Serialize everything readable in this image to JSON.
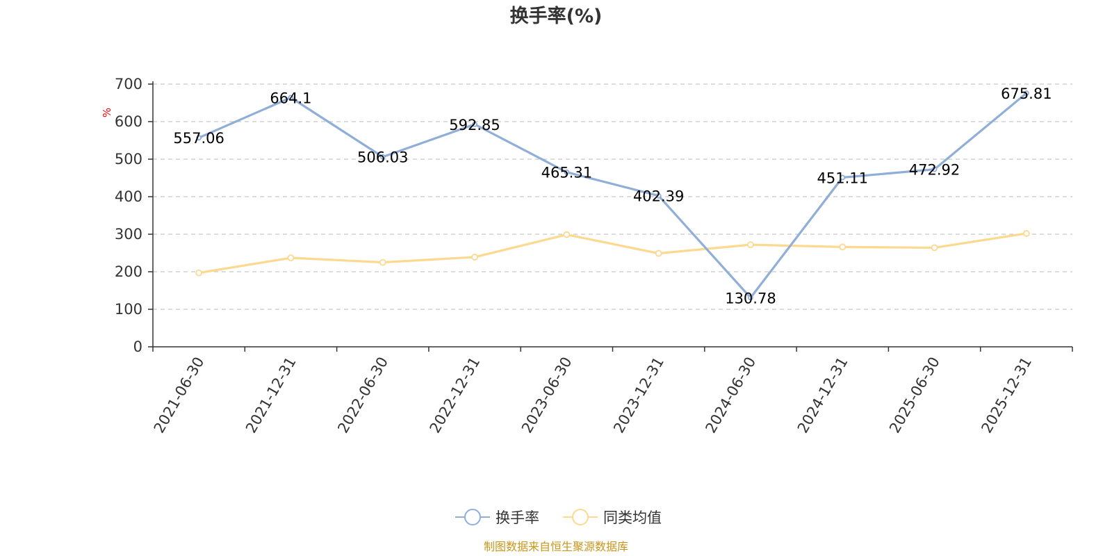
{
  "colors": {
    "series_turnover": "#8faed8",
    "series_peer_avg": "#fcd98f",
    "axis": "#333333",
    "grid": "#c8c8c8",
    "unit": "#ee0000",
    "source": "#c9961a"
  },
  "chart_data": {
    "type": "line",
    "title": "换手率(%)",
    "ylabel": "%",
    "xlabel": "",
    "ylim": [
      0,
      700
    ],
    "yticks": [
      0,
      100,
      200,
      300,
      400,
      500,
      600,
      700
    ],
    "grid": true,
    "legend_position": "bottom-center",
    "categories": [
      "2021-06-30",
      "2021-12-31",
      "2022-06-30",
      "2022-12-31",
      "2023-06-30",
      "2023-12-31",
      "2024-06-30",
      "2024-12-31",
      "2025-06-30",
      "2025-12-31"
    ],
    "series": [
      {
        "name": "换手率",
        "values": [
          557.06,
          664.1,
          506.03,
          592.85,
          465.31,
          402.39,
          130.78,
          451.11,
          472.92,
          675.81
        ],
        "labels": [
          "557.06",
          "664.1",
          "506.03",
          "592.85",
          "465.31",
          "402.39",
          "130.78",
          "451.11",
          "472.92",
          "675.81"
        ]
      },
      {
        "name": "同类均值",
        "values": [
          197,
          237,
          225,
          239,
          299,
          249,
          272,
          266,
          264,
          302
        ]
      }
    ]
  },
  "source_note": "制图数据来自恒生聚源数据库"
}
